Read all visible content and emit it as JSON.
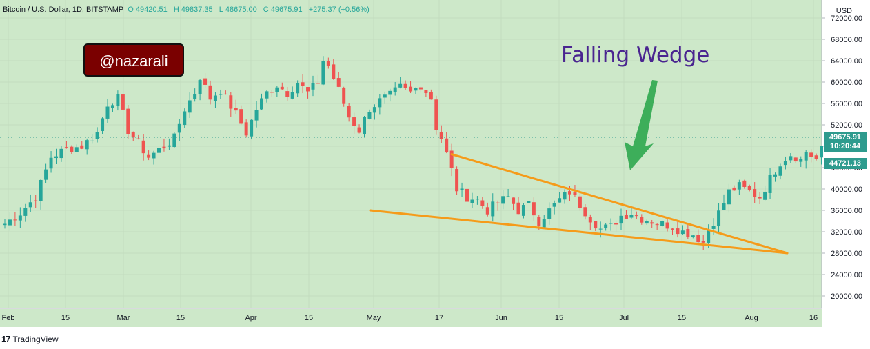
{
  "header": {
    "symbol": "Bitcoin / U.S. Dollar, 1D, BITSTAMP",
    "open_label": "O",
    "open": "49420.51",
    "high_label": "H",
    "high": "49837.35",
    "low_label": "L",
    "low": "48675.00",
    "close_label": "C",
    "close": "49675.91",
    "change": "+275.37 (+0.56%)"
  },
  "badge": {
    "text": "@nazarali"
  },
  "annotation": {
    "text": "Falling Wedge"
  },
  "price_labels": {
    "current_price": "49675.91",
    "countdown": "10:20:44",
    "other_price": "44721.13"
  },
  "footer": {
    "logo": "17",
    "brand": "TradingView"
  },
  "colors": {
    "background": "#cde8c9",
    "up": "#26a69a",
    "down": "#ef5350",
    "trendline": "#f59b1a",
    "arrow": "#3dae5a",
    "badge_bg": "#7a0000",
    "annotation": "#4a2590",
    "price_label": "#2e9b8e"
  },
  "chart_data": {
    "type": "candlestick",
    "currency": "USD",
    "interval": "1D",
    "y_axis": {
      "ticks": [
        "72000.00",
        "68000.00",
        "64000.00",
        "60000.00",
        "56000.00",
        "52000.00",
        "48000.00",
        "44000.00",
        "40000.00",
        "36000.00",
        "32000.00",
        "28000.00",
        "24000.00",
        "20000.00"
      ]
    },
    "x_axis": {
      "ticks": [
        "Feb",
        "15",
        "Mar",
        "15",
        "Apr",
        "15",
        "May",
        "17",
        "Jun",
        "15",
        "Jul",
        "15",
        "Aug",
        "16"
      ]
    },
    "close_path": [
      [
        0,
        33500
      ],
      [
        3,
        35500
      ],
      [
        6,
        38500
      ],
      [
        9,
        46000
      ],
      [
        12,
        47500
      ],
      [
        15,
        48000
      ],
      [
        18,
        50500
      ],
      [
        20,
        56000
      ],
      [
        22,
        57000
      ],
      [
        24,
        51000
      ],
      [
        26,
        48500
      ],
      [
        28,
        46000
      ],
      [
        31,
        48000
      ],
      [
        33,
        49500
      ],
      [
        35,
        55000
      ],
      [
        37,
        58000
      ],
      [
        38,
        61000
      ],
      [
        40,
        57000
      ],
      [
        42,
        58500
      ],
      [
        45,
        54000
      ],
      [
        47,
        50500
      ],
      [
        49,
        55000
      ],
      [
        51,
        58000
      ],
      [
        53,
        59500
      ],
      [
        55,
        58000
      ],
      [
        57,
        60000
      ],
      [
        59,
        58000
      ],
      [
        61,
        60000
      ],
      [
        62,
        64000
      ],
      [
        63,
        63000
      ],
      [
        65,
        58500
      ],
      [
        67,
        53500
      ],
      [
        69,
        51000
      ],
      [
        71,
        55000
      ],
      [
        73,
        56500
      ],
      [
        75,
        57500
      ],
      [
        77,
        59000
      ],
      [
        79,
        58000
      ],
      [
        81,
        59500
      ],
      [
        83,
        57000
      ],
      [
        84,
        51500
      ],
      [
        85,
        49500
      ],
      [
        87,
        43500
      ],
      [
        88,
        40000
      ],
      [
        90,
        38500
      ],
      [
        92,
        38000
      ],
      [
        94,
        36000
      ],
      [
        96,
        37500
      ],
      [
        98,
        38500
      ],
      [
        100,
        36000
      ],
      [
        102,
        37000
      ],
      [
        104,
        34000
      ],
      [
        106,
        36000
      ],
      [
        108,
        38000
      ],
      [
        110,
        39500
      ],
      [
        112,
        37000
      ],
      [
        114,
        34500
      ],
      [
        116,
        32500
      ],
      [
        118,
        33000
      ],
      [
        120,
        35000
      ],
      [
        122,
        35500
      ],
      [
        124,
        34500
      ],
      [
        126,
        34000
      ],
      [
        128,
        33500
      ],
      [
        130,
        33000
      ],
      [
        132,
        32000
      ],
      [
        134,
        31500
      ],
      [
        136,
        30000
      ],
      [
        137,
        32500
      ],
      [
        139,
        35500
      ],
      [
        141,
        39500
      ],
      [
        143,
        40500
      ],
      [
        145,
        39500
      ],
      [
        147,
        38500
      ],
      [
        149,
        42000
      ],
      [
        151,
        45000
      ],
      [
        153,
        46500
      ],
      [
        155,
        45500
      ],
      [
        156,
        47000
      ],
      [
        158,
        45500
      ],
      [
        159,
        48000
      ]
    ],
    "trendlines": [
      {
        "from": [
          "Apr 29",
          36000
        ],
        "to": [
          "Aug 9",
          28000
        ]
      },
      {
        "from": [
          "May 20",
          46500
        ],
        "to": [
          "Aug 9",
          28000
        ]
      }
    ]
  }
}
